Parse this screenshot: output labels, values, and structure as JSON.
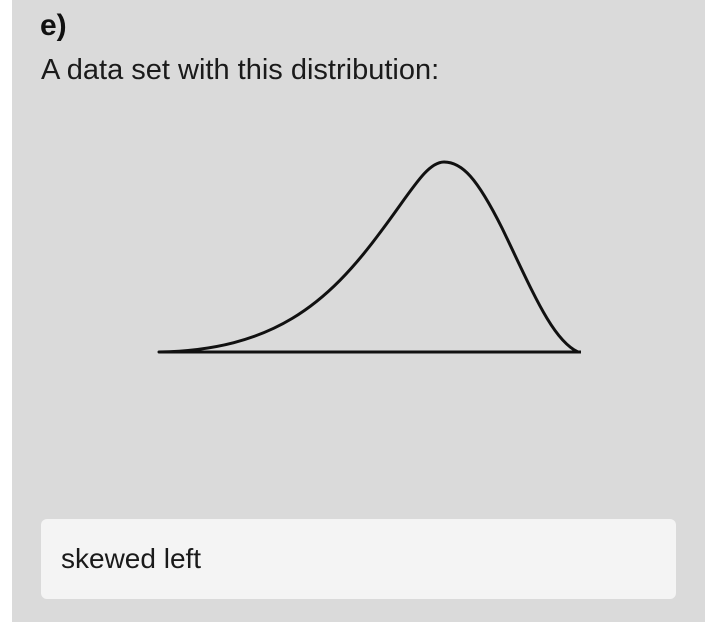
{
  "question": {
    "part_label": "e)",
    "prompt": "A data set with this distribution:"
  },
  "figure": {
    "kind": "distribution-curve",
    "shape": "skewed left",
    "stroke_color": "#111111"
  },
  "answer": {
    "value": "skewed left"
  },
  "colors": {
    "card_background": "#dadada",
    "answer_background": "#f4f4f4",
    "text": "#1a1a1a"
  }
}
